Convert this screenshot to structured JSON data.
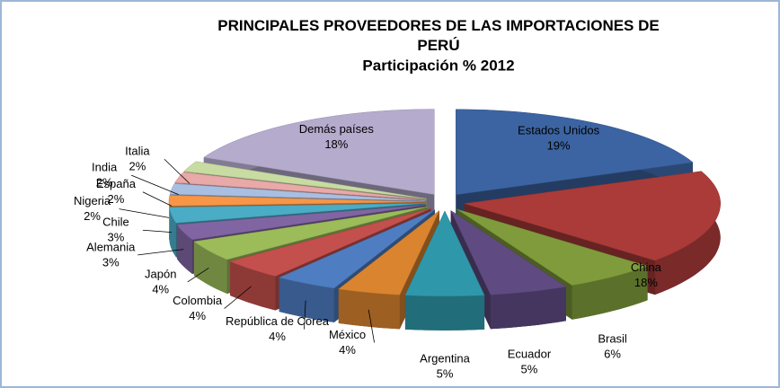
{
  "chart_data": {
    "type": "pie3d",
    "title": "PRINCIPALES PROVEEDORES DE LAS IMPORTACIONES DE PERÚ",
    "subtitle": "Participación % 2012",
    "categories": [
      "Estados Unidos",
      "China",
      "Brasil",
      "Ecuador",
      "Argentina",
      "México",
      "República de Corea",
      "Colombia",
      "Japón",
      "Alemania",
      "Chile",
      "Nigeria",
      "España",
      "India",
      "Italia",
      "Demás países"
    ],
    "values": [
      19,
      18,
      6,
      5,
      5,
      4,
      4,
      4,
      4,
      3,
      3,
      2,
      2,
      2,
      2,
      18
    ],
    "value_labels": [
      "19%",
      "18%",
      "6%",
      "5%",
      "5%",
      "4%",
      "4%",
      "4%",
      "4%",
      "3%",
      "3%",
      "2%",
      "2%",
      "2%",
      "2%",
      "18%"
    ],
    "colors": [
      "#3c64a2",
      "#aa3b39",
      "#7f9b3b",
      "#5f4b82",
      "#2f97aa",
      "#da842f",
      "#4f7dc2",
      "#c4504d",
      "#9cbc5a",
      "#8165a3",
      "#4bacc6",
      "#f79646",
      "#a8bfe2",
      "#e8a9a8",
      "#c8dba2",
      "#b5abcd"
    ]
  }
}
